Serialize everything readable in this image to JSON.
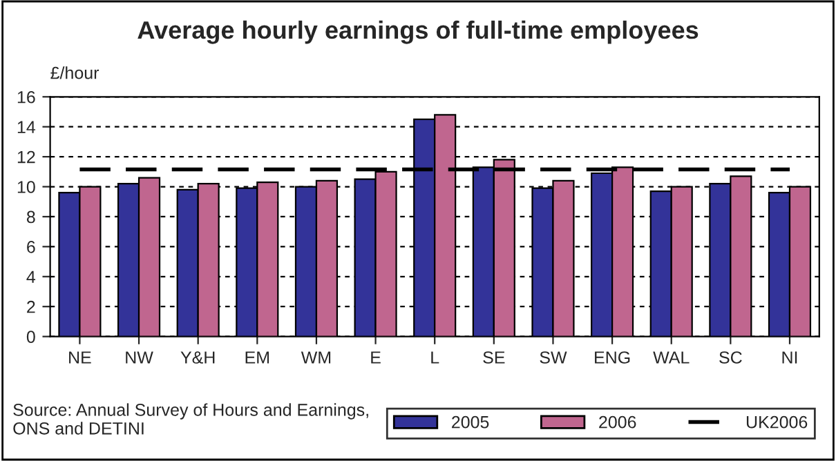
{
  "chart_data": {
    "type": "bar",
    "title": "Average hourly earnings of full-time employees",
    "ylabel": "£/hour",
    "categories": [
      "NE",
      "NW",
      "Y&H",
      "EM",
      "WM",
      "E",
      "L",
      "SE",
      "SW",
      "ENG",
      "WAL",
      "SC",
      "NI"
    ],
    "series": [
      {
        "name": "2005",
        "color": "#333399",
        "values": [
          9.6,
          10.2,
          9.8,
          9.9,
          10.0,
          10.5,
          14.5,
          11.3,
          9.9,
          10.9,
          9.7,
          10.2,
          9.6
        ]
      },
      {
        "name": "2006",
        "color": "#c0668f",
        "values": [
          10.0,
          10.6,
          10.2,
          10.3,
          10.4,
          11.0,
          14.8,
          11.8,
          10.4,
          11.3,
          10.0,
          10.7,
          10.0
        ]
      }
    ],
    "ref_lines": [
      {
        "axis": "y",
        "value": 11.15,
        "label": "UK2006",
        "color": "#000000",
        "line_style": "dashed"
      }
    ],
    "ylim": [
      0,
      16
    ],
    "yticks": [
      0,
      2,
      4,
      6,
      8,
      10,
      12,
      14,
      16
    ],
    "grid": "y",
    "legend": "bottom right",
    "annotations": [
      "Source: Annual Survey of Hours and Earnings,\nONS and DETINI"
    ]
  }
}
